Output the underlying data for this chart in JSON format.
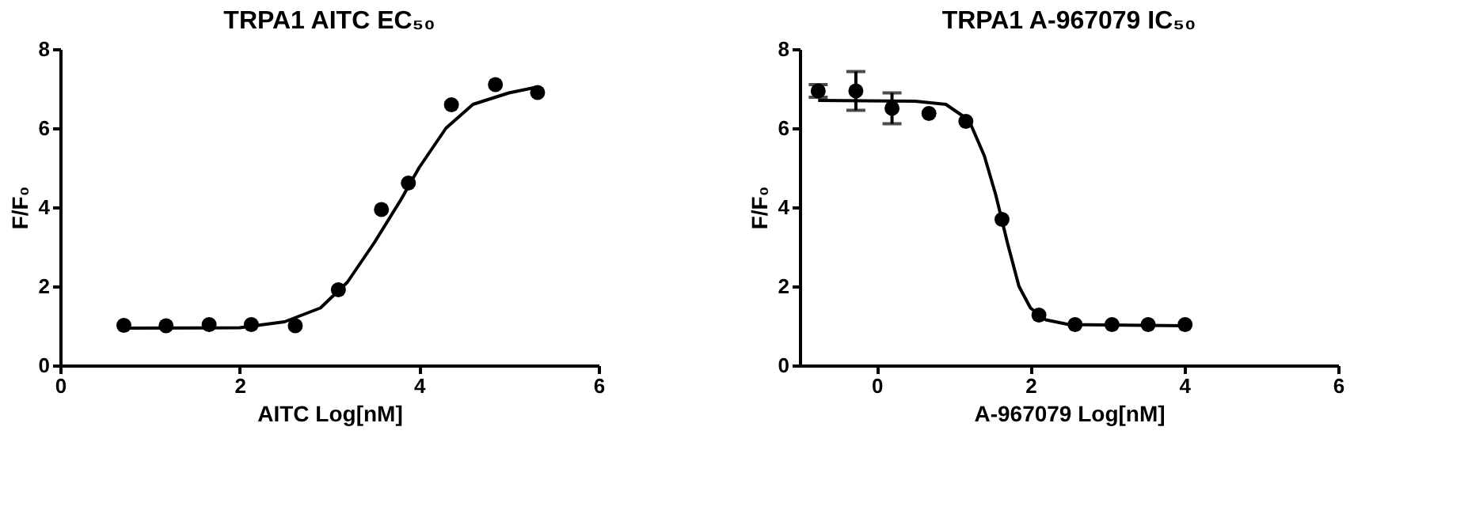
{
  "chart_data": [
    {
      "type": "scatter",
      "title": "TRPA1 AITC EC₅₀",
      "xlabel": "AITC Log[nM]",
      "ylabel": "F/F₀",
      "xlim": [
        0,
        6
      ],
      "xticks": [
        0,
        2,
        4,
        6
      ],
      "ylim": [
        0,
        8
      ],
      "yticks": [
        0,
        2,
        4,
        6,
        8
      ],
      "grid": false,
      "marker": "circle",
      "series": [
        {
          "color": "#000000",
          "x": [
            0.71,
            1.18,
            1.66,
            2.13,
            2.62,
            3.1,
            3.58,
            3.88,
            4.36,
            4.85,
            5.32
          ],
          "values": [
            1.01,
            1.0,
            1.03,
            1.03,
            1.0,
            1.91,
            3.94,
            4.61,
            6.59,
            7.1,
            6.9
          ]
        },
        {
          "type": "line",
          "color": "#000000",
          "line_style": "solid",
          "marker": "none",
          "x": [
            0.71,
            2.0,
            2.5,
            2.9,
            3.2,
            3.5,
            3.8,
            4.0,
            4.3,
            4.6,
            5.0,
            5.32
          ],
          "values": [
            0.94,
            0.95,
            1.1,
            1.45,
            2.1,
            3.1,
            4.2,
            5.0,
            6.0,
            6.6,
            6.89,
            7.04
          ]
        }
      ]
    },
    {
      "type": "scatter",
      "title": "TRPA1 A-967079 IC₅₀",
      "xlabel": "A-967079 Log[nM]",
      "ylabel": "F/F₀",
      "xlim": [
        -1,
        6
      ],
      "xticks": [
        0,
        2,
        4,
        6
      ],
      "ylim": [
        0,
        8
      ],
      "yticks": [
        0,
        2,
        4,
        6,
        8
      ],
      "grid": false,
      "marker": "circle",
      "series": [
        {
          "color": "#000000",
          "x": [
            -0.76,
            -0.27,
            0.2,
            0.68,
            1.16,
            1.63,
            2.11,
            2.58,
            3.06,
            3.53,
            4.01
          ],
          "values": [
            6.94,
            6.94,
            6.5,
            6.37,
            6.17,
            3.69,
            1.27,
            1.03,
            1.03,
            1.03,
            1.03
          ],
          "errors": [
            0.16,
            0.49,
            0.39,
            null,
            null,
            null,
            null,
            null,
            null,
            null,
            null
          ]
        },
        {
          "type": "line",
          "color": "#000000",
          "line_style": "solid",
          "marker": "none",
          "x": [
            -0.76,
            0.5,
            0.9,
            1.2,
            1.4,
            1.55,
            1.7,
            1.85,
            2.0,
            2.2,
            2.5,
            4.01
          ],
          "values": [
            6.7,
            6.68,
            6.6,
            6.2,
            5.3,
            4.3,
            3.1,
            2.0,
            1.45,
            1.15,
            1.03,
            1.0
          ]
        }
      ]
    }
  ]
}
